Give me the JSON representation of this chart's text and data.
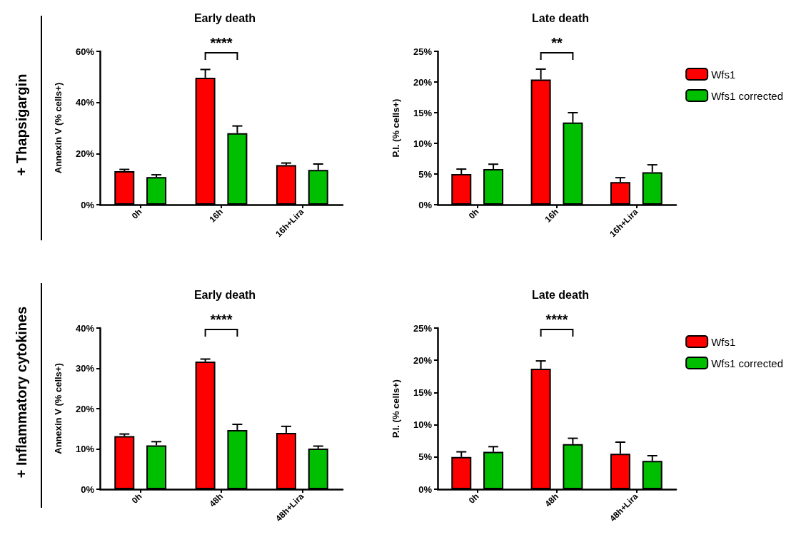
{
  "chart_data": [
    {
      "type": "bar",
      "title": "Early death",
      "ylabel": "Annexin V (% cells+)",
      "categories": [
        "0h",
        "16h",
        "16h+Lira"
      ],
      "ylim": [
        0,
        60
      ],
      "yticks": [
        {
          "value": 0,
          "label": "0%"
        },
        {
          "value": 20,
          "label": "20%"
        },
        {
          "value": 40,
          "label": "40%"
        },
        {
          "value": 60,
          "label": "60%"
        }
      ],
      "grid": false,
      "legend": false,
      "series": [
        {
          "color": "#ff0000",
          "values": [
            13.1,
            49.7,
            15.5
          ],
          "errors": [
            [
              13.1,
              13.8
            ],
            [
              49.7,
              52.9
            ],
            [
              15.5,
              16.3
            ]
          ]
        },
        {
          "color": "#00bf00",
          "values": [
            10.8,
            28.0,
            13.6
          ],
          "errors": [
            [
              10.8,
              11.7
            ],
            [
              28.0,
              30.8
            ],
            [
              13.6,
              15.9
            ]
          ]
        }
      ],
      "annotations": [
        "+ Thapsigargin",
        "****"
      ]
    },
    {
      "type": "bar",
      "title": "Late death",
      "ylabel": "P.I. (% cells+)",
      "categories": [
        "0h",
        "16h",
        "16h+Lira"
      ],
      "ylim": [
        0,
        25
      ],
      "yticks": [
        {
          "value": 0,
          "label": "0%"
        },
        {
          "value": 5,
          "label": "5%"
        },
        {
          "value": 10,
          "label": "10%"
        },
        {
          "value": 15,
          "label": "15%"
        },
        {
          "value": 20,
          "label": "20%"
        },
        {
          "value": 25,
          "label": "25%"
        }
      ],
      "grid": false,
      "legend": "right",
      "series": [
        {
          "name": "Wfs1",
          "color": "#ff0000",
          "values": [
            5.0,
            20.4,
            3.7
          ],
          "errors": [
            [
              5.0,
              5.8
            ],
            [
              20.4,
              22.1
            ],
            [
              3.7,
              4.4
            ]
          ]
        },
        {
          "name": "Wfs1 corrected",
          "color": "#00bf00",
          "values": [
            5.8,
            13.4,
            5.3
          ],
          "errors": [
            [
              5.8,
              6.6
            ],
            [
              13.4,
              15.0
            ],
            [
              5.3,
              6.5
            ]
          ]
        }
      ],
      "annotations": [
        "**"
      ]
    },
    {
      "type": "bar",
      "title": "Early death",
      "ylabel": "Annexin V (% cells+)",
      "categories": [
        "0h",
        "48h",
        "48h+Lira"
      ],
      "ylim": [
        0,
        40
      ],
      "yticks": [
        {
          "value": 0,
          "label": "0%"
        },
        {
          "value": 10,
          "label": "10%"
        },
        {
          "value": 20,
          "label": "20%"
        },
        {
          "value": 30,
          "label": "30%"
        },
        {
          "value": 40,
          "label": "40%"
        }
      ],
      "grid": false,
      "legend": false,
      "series": [
        {
          "color": "#ff0000",
          "values": [
            13.2,
            31.7,
            14.0
          ],
          "errors": [
            [
              13.2,
              13.7
            ],
            [
              31.7,
              32.3
            ],
            [
              14.0,
              15.6
            ]
          ]
        },
        {
          "color": "#00bf00",
          "values": [
            10.9,
            14.7,
            10.1
          ],
          "errors": [
            [
              10.9,
              11.8
            ],
            [
              14.7,
              16.1
            ],
            [
              10.1,
              10.7
            ]
          ]
        }
      ],
      "annotations": [
        "+ Inflammatory cytokines",
        "****"
      ]
    },
    {
      "type": "bar",
      "title": "Late death",
      "ylabel": "P.I. (% cells+)",
      "categories": [
        "0h",
        "48h",
        "48h+Lira"
      ],
      "ylim": [
        0,
        25
      ],
      "yticks": [
        {
          "value": 0,
          "label": "0%"
        },
        {
          "value": 5,
          "label": "5%"
        },
        {
          "value": 10,
          "label": "10%"
        },
        {
          "value": 15,
          "label": "15%"
        },
        {
          "value": 20,
          "label": "20%"
        },
        {
          "value": 25,
          "label": "25%"
        }
      ],
      "grid": false,
      "legend": "right",
      "series": [
        {
          "name": "Wfs1",
          "color": "#ff0000",
          "values": [
            5.0,
            18.7,
            5.5
          ],
          "errors": [
            [
              5.0,
              5.8
            ],
            [
              18.7,
              19.9
            ],
            [
              5.5,
              7.3
            ]
          ]
        },
        {
          "name": "Wfs1 corrected",
          "color": "#00bf00",
          "values": [
            5.8,
            7.0,
            4.4
          ],
          "errors": [
            [
              5.8,
              6.6
            ],
            [
              7.0,
              7.9
            ],
            [
              4.4,
              5.2
            ]
          ]
        }
      ],
      "annotations": [
        "****"
      ]
    }
  ]
}
